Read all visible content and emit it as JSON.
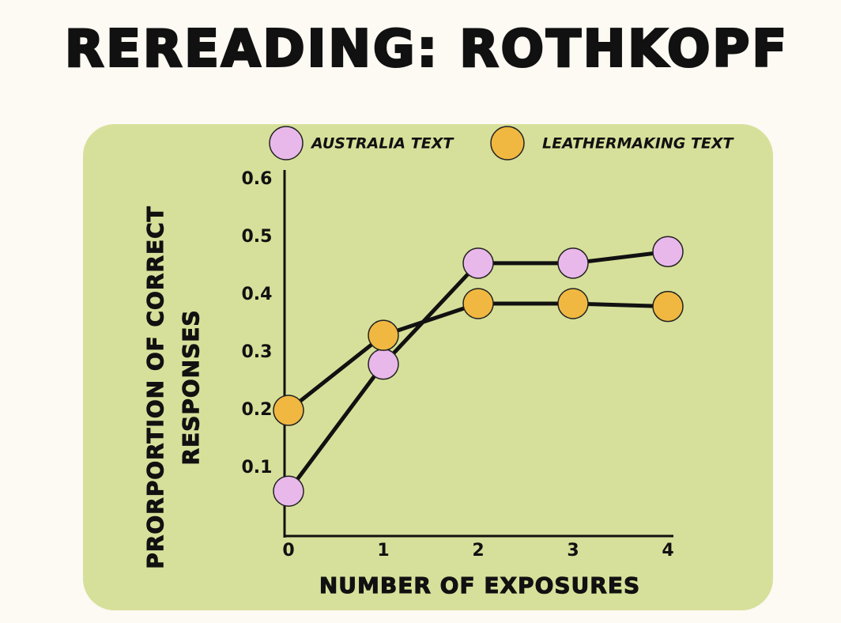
{
  "chart_data": {
    "type": "line",
    "title": "REREADING: ROTHKOPF",
    "x_label": "NUMBER OF EXPOSURES",
    "y_label": [
      "PRORPORTION OF CORRECT",
      "RESPONSES"
    ],
    "x": [
      0,
      1,
      2,
      3,
      4
    ],
    "xlim": [
      0,
      4
    ],
    "xticks": [
      0,
      1,
      2,
      3,
      4
    ],
    "ylim": [
      0,
      0.6
    ],
    "yticks": [
      0.1,
      0.2,
      0.3,
      0.4,
      0.5,
      0.6
    ],
    "series": [
      {
        "name": "AUSTRALIA TEXT",
        "color": "#e9b8ea",
        "values": [
          0.06,
          0.28,
          0.455,
          0.455,
          0.475
        ]
      },
      {
        "name": "LEATHERMAKING TEXT",
        "color": "#f0b840",
        "values": [
          0.2,
          0.33,
          0.385,
          0.385,
          0.38
        ]
      }
    ]
  }
}
